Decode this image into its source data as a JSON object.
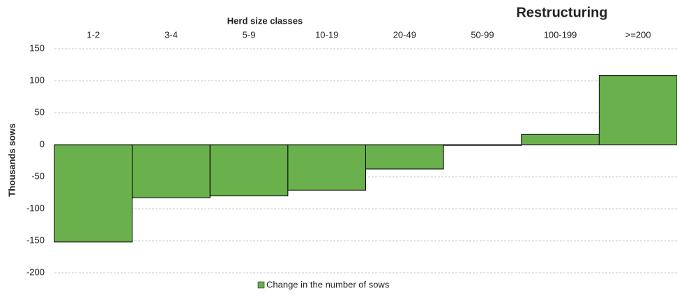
{
  "chart_data": {
    "type": "bar",
    "title": "Restructuring",
    "x_label": "Herd size classes",
    "y_label": "Thousands sows",
    "categories": [
      "1-2",
      "3-4",
      "5-9",
      "10-19",
      "20-49",
      "50-99",
      "100-199",
      ">=200"
    ],
    "series": [
      {
        "name": "Change in the number of sows",
        "color": "#6ab04c",
        "values": [
          -152,
          -83,
          -80,
          -71,
          -38,
          -1,
          16,
          108
        ]
      }
    ],
    "ylim": [
      -200,
      150
    ],
    "yticks": [
      -200,
      -150,
      -100,
      -50,
      0,
      50,
      100,
      150
    ],
    "grid": true,
    "legend": "bottom"
  }
}
